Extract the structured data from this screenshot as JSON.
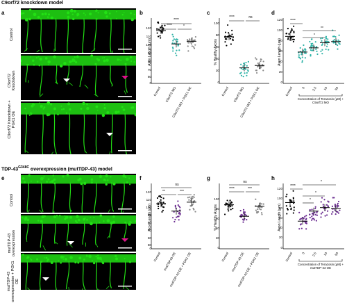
{
  "sections": {
    "top_title": "C9orf72 knockdown model",
    "bottom_title_pre": "TDP-43",
    "bottom_title_sup": "G348C",
    "bottom_title_post": " overexpression (mutTDP-43) model"
  },
  "letters": {
    "a": "a",
    "b": "b",
    "c": "c",
    "d": "d",
    "e": "e",
    "f": "f",
    "g": "g",
    "h": "h"
  },
  "micro_labels": {
    "a1": "Control",
    "a2": "C9orf72 Knockdown",
    "a3": "C9orf72 Knockdown + PGK1 OE",
    "e1": "Control",
    "e2": "mutTDP-43 overexpression",
    "e3": "mutTDP-43 overexpression + PGK1 OE"
  },
  "colors": {
    "green": "#22e014",
    "teal": "#2fb3a7",
    "purple": "#6b2d91",
    "grey": "#8a8a8a",
    "magenta": "#e0108c",
    "black": "#000000"
  },
  "chart_data": [
    {
      "id": "b",
      "type": "scatter",
      "ylabel": "Axon Length (μm)",
      "yticks": [
        "0",
        "60",
        "70",
        "80",
        "90",
        "100",
        "110",
        "120"
      ],
      "categories": [
        "Control",
        "C9orf72 MO",
        "C9orf72 MO + PGK1 OE"
      ],
      "means": [
        108,
        93,
        96
      ],
      "significance": [
        "****",
        "****",
        "*"
      ]
    },
    {
      "id": "c",
      "type": "scatter",
      "ylabel": "% Healthy Axons",
      "yticks": [
        "0",
        "20",
        "40",
        "60",
        "80",
        "100"
      ],
      "categories": [
        "Control",
        "C9orf72 MO",
        "C9orf72 MO + PGK1 OE"
      ],
      "means": [
        78,
        26,
        30
      ],
      "significance": [
        "****",
        "ns"
      ]
    },
    {
      "id": "d",
      "type": "scatter",
      "ylabel": "Axon Length (μm)",
      "yticks": [
        "0",
        "20",
        "40",
        "60",
        "80",
        "100",
        "120"
      ],
      "x_numbers": [
        "0",
        "2.5",
        "10",
        "50"
      ],
      "xlabel": "Concentration of Terazosin (μM) + C9orf72 MO",
      "categories": [
        "Control",
        "0",
        "2.5",
        "10",
        "50"
      ],
      "means": [
        90,
        60,
        68,
        78,
        80
      ],
      "significance": [
        "****",
        "*",
        "**"
      ]
    },
    {
      "id": "f",
      "type": "scatter",
      "ylabel": "Axon Length (μm)",
      "yticks": [
        "0",
        "50",
        "60",
        "70",
        "80",
        "90",
        "100",
        "110",
        "120"
      ],
      "categories": [
        "Control",
        "mutTDP43 OE",
        "mutTDP-43 OE + PGK1 OE"
      ],
      "means": [
        97,
        88,
        99
      ],
      "significance": [
        "ns",
        "**",
        "***"
      ]
    },
    {
      "id": "g",
      "type": "scatter",
      "ylabel": "% Healthy Axons",
      "yticks": [
        "0",
        "20",
        "40",
        "60",
        "80",
        "100"
      ],
      "categories": [
        "Control",
        "mutTDP-43 OE",
        "mutTDP-43 OE + PGK1 OE"
      ],
      "means": [
        88,
        65,
        85
      ],
      "significance": [
        "ns",
        "****",
        "***"
      ]
    },
    {
      "id": "h",
      "type": "scatter",
      "ylabel": "Axon Length (μm)",
      "yticks": [
        "0",
        "20",
        "40",
        "60",
        "80",
        "100",
        "120"
      ],
      "x_numbers": [
        "0",
        "2.5",
        "10",
        "50"
      ],
      "xlabel": "Concentration of Terazosin (μM) + mutTDP-43 OE",
      "categories": [
        "Control",
        "0",
        "2.5",
        "10",
        "50"
      ],
      "means": [
        92,
        55,
        75,
        82,
        80
      ],
      "significance": [
        "****",
        "*",
        "*",
        "*"
      ]
    }
  ]
}
